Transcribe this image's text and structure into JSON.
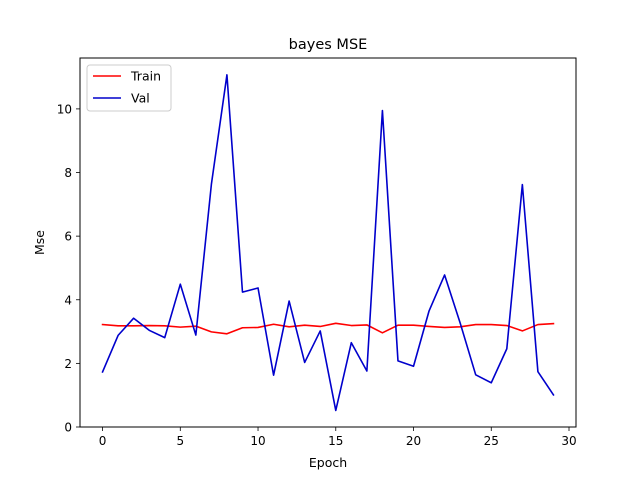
{
  "chart_data": {
    "type": "line",
    "title": "bayes MSE",
    "xlabel": "Epoch",
    "ylabel": "Mse",
    "xlim": [
      -1.45,
      30.45
    ],
    "ylim": [
      0,
      11.6
    ],
    "xticks": [
      0,
      5,
      10,
      15,
      20,
      25,
      30
    ],
    "yticks": [
      0,
      2,
      4,
      6,
      8,
      10
    ],
    "grid": false,
    "legend_position": "top-left",
    "x": [
      0,
      1,
      2,
      3,
      4,
      5,
      6,
      7,
      8,
      9,
      10,
      11,
      12,
      13,
      14,
      15,
      16,
      17,
      18,
      19,
      20,
      21,
      22,
      23,
      24,
      25,
      26,
      27,
      28,
      29
    ],
    "series": [
      {
        "name": "Train",
        "color": "#ff0000",
        "values": [
          3.22,
          3.18,
          3.18,
          3.19,
          3.18,
          3.14,
          3.17,
          2.99,
          2.93,
          3.12,
          3.13,
          3.23,
          3.15,
          3.2,
          3.16,
          3.26,
          3.19,
          3.21,
          2.96,
          3.2,
          3.2,
          3.16,
          3.13,
          3.15,
          3.22,
          3.22,
          3.19,
          3.02,
          3.22,
          3.25
        ]
      },
      {
        "name": "Val",
        "color": "#0000cc",
        "values": [
          1.73,
          2.88,
          3.42,
          3.04,
          2.81,
          4.49,
          2.89,
          7.63,
          11.07,
          4.24,
          4.37,
          1.63,
          3.96,
          2.03,
          3.02,
          0.52,
          2.65,
          1.76,
          9.95,
          2.08,
          1.91,
          3.65,
          4.78,
          3.27,
          1.64,
          1.39,
          2.46,
          7.62,
          1.74,
          1.01
        ]
      }
    ]
  }
}
